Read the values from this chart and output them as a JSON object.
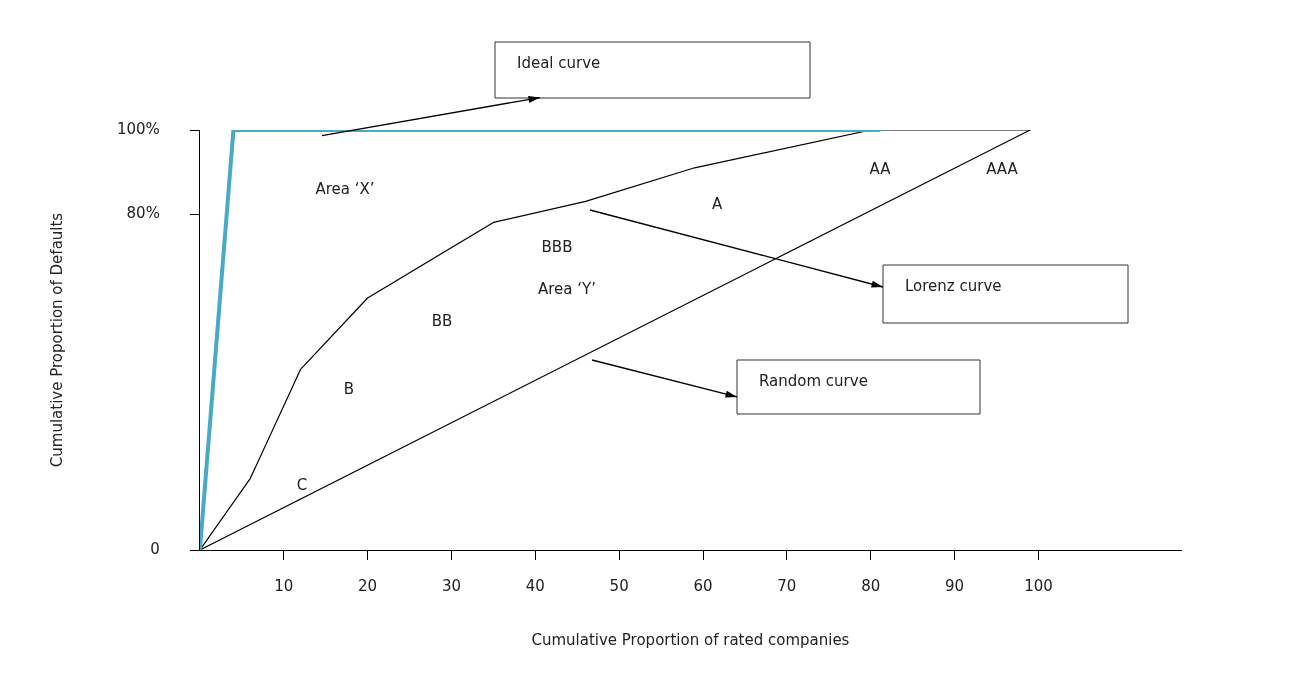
{
  "chart_data": {
    "type": "line",
    "xlabel": "Cumulative Proportion of rated companies",
    "ylabel": "Cumulative Proportion of Defaults",
    "xlim": [
      0,
      117
    ],
    "xticks": [
      10,
      20,
      30,
      40,
      50,
      60,
      70,
      80,
      90,
      100
    ],
    "ylim": [
      0,
      100
    ],
    "yticks": [
      {
        "value": 0,
        "label": "0"
      },
      {
        "value": 80,
        "label": "80%"
      },
      {
        "value": 100,
        "label": "100%"
      }
    ],
    "grid": false,
    "legend": false,
    "marker": "none",
    "line_style": "solid",
    "series": [
      {
        "color": "#4aa9c4",
        "x": [
          0,
          4,
          81
        ],
        "values": [
          0,
          100,
          100
        ]
      },
      {
        "color": "#000000",
        "x": [
          0,
          6,
          12,
          20,
          35,
          46,
          59,
          80,
          99
        ],
        "values": [
          0,
          17,
          43,
          60,
          78,
          83,
          91,
          100,
          100
        ]
      },
      {
        "color": "#000000",
        "x": [
          0,
          99
        ],
        "values": [
          0,
          100
        ]
      }
    ],
    "annotations": [
      "Ideal curve",
      "Lorenz curve",
      "Random curve",
      "Area ‘X’",
      "Area ‘Y’",
      "AA",
      "AAA",
      "A",
      "BBB",
      "BB",
      "B",
      "C"
    ]
  }
}
